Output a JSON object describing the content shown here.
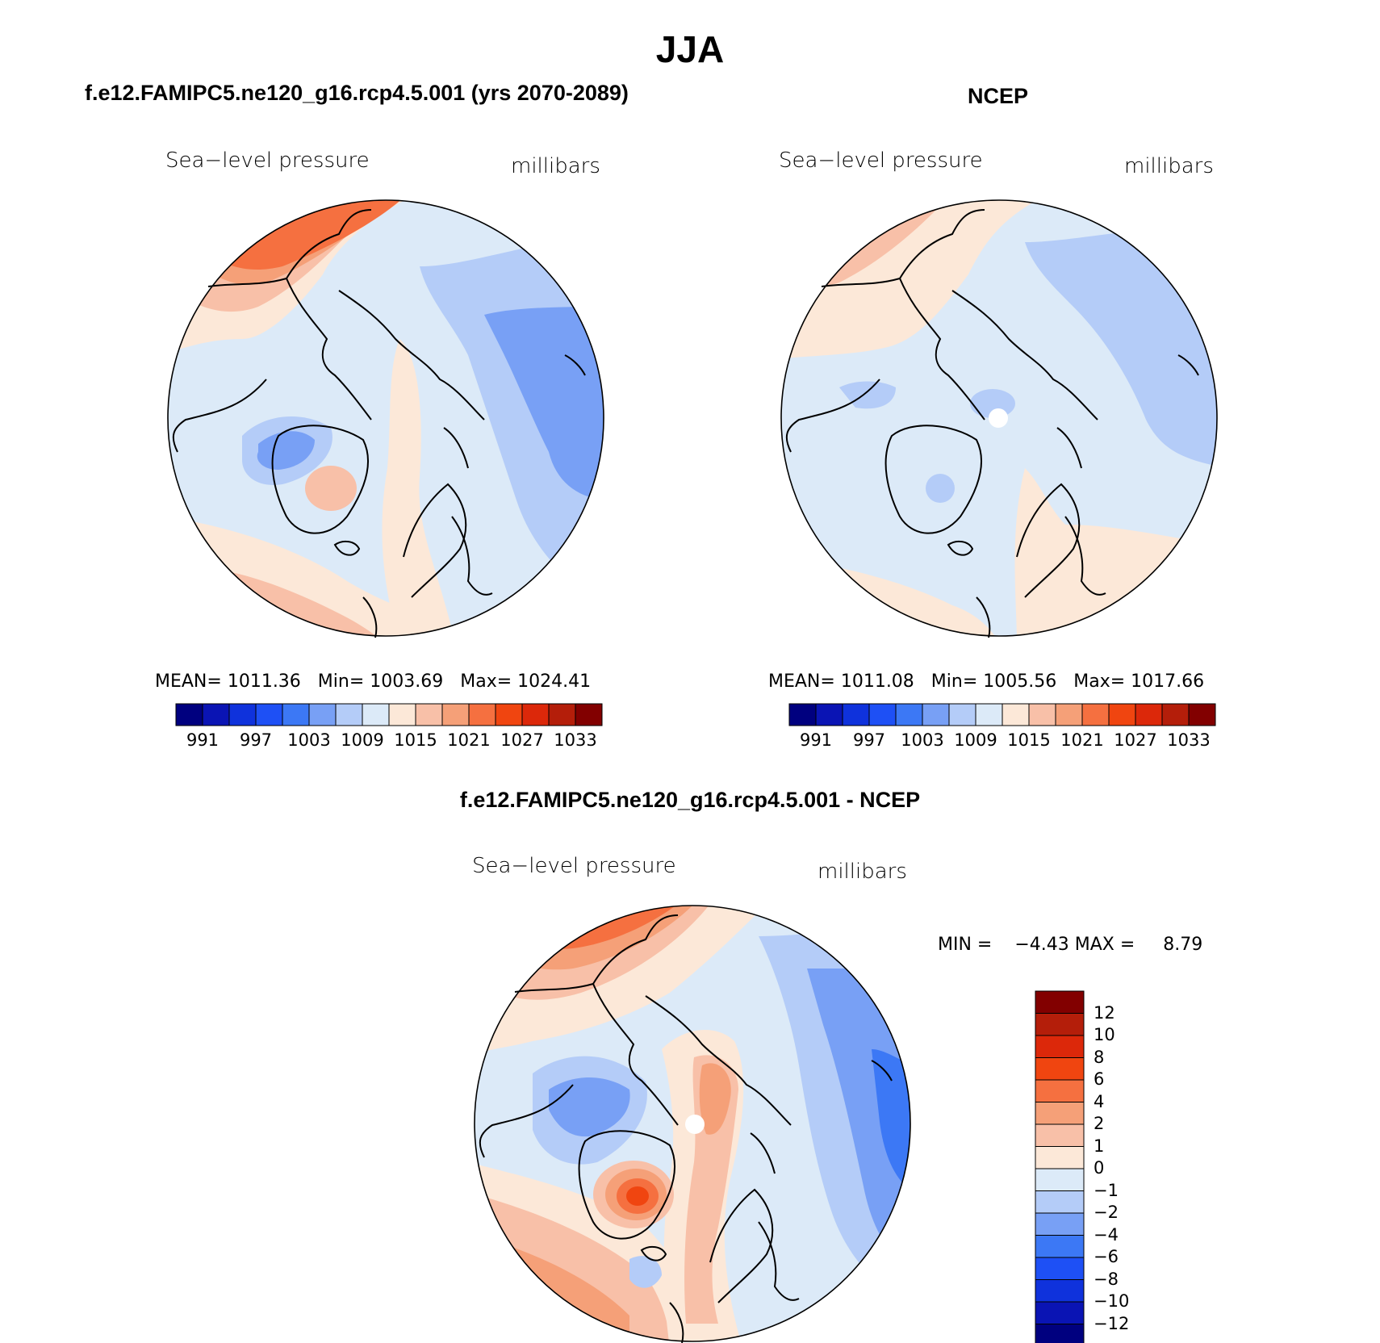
{
  "figure": {
    "title": "JJA"
  },
  "panels": [
    {
      "id": "model",
      "title": "f.e12.FAMIPC5.ne120_g16.rcp4.5.001 (yrs 2070-2089)",
      "variable": "Sea−level pressure",
      "units": "millibars",
      "stats": {
        "mean_label": "MEAN=",
        "mean": "1011.36",
        "min_label": "Min=",
        "min": "1003.69",
        "max_label": "Max=",
        "max": "1024.41"
      }
    },
    {
      "id": "obs",
      "title": "NCEP",
      "variable": "Sea−level pressure",
      "units": "millibars",
      "stats": {
        "mean_label": "MEAN=",
        "mean": "1011.08",
        "min_label": "Min=",
        "min": "1005.56",
        "max_label": "Max=",
        "max": "1017.66"
      }
    },
    {
      "id": "diff",
      "title": "f.e12.FAMIPC5.ne120_g16.rcp4.5.001 - NCEP",
      "variable": "Sea−level pressure",
      "units": "millibars",
      "stats": {
        "min_label": "MIN =",
        "min": "−4.43",
        "max_label": "MAX =",
        "max": "8.79"
      }
    }
  ],
  "colorbars": {
    "absolute": {
      "orientation": "horizontal",
      "colors": [
        "#00007f",
        "#0a14b4",
        "#0f32dc",
        "#1e50f5",
        "#3c78f5",
        "#78a0f5",
        "#b4ccf8",
        "#dceaf8",
        "#fce8d8",
        "#f8c0a8",
        "#f5a078",
        "#f57040",
        "#f04510",
        "#dc280a",
        "#b41e0a",
        "#820000"
      ],
      "labels": [
        "991",
        "997",
        "1003",
        "1009",
        "1015",
        "1021",
        "1027",
        "1033"
      ]
    },
    "difference": {
      "orientation": "vertical",
      "colors_top_to_bottom": [
        "#820000",
        "#b41e0a",
        "#dc280a",
        "#f04510",
        "#f57040",
        "#f5a078",
        "#f8c0a8",
        "#fce8d8",
        "#dceaf8",
        "#b4ccf8",
        "#78a0f5",
        "#3c78f5",
        "#1e50f5",
        "#0f32dc",
        "#0a14b4",
        "#00007f"
      ],
      "labels_top_to_bottom": [
        "12",
        "10",
        "8",
        "6",
        "4",
        "2",
        "1",
        "0",
        "−1",
        "−2",
        "−4",
        "−6",
        "−8",
        "−10",
        "−12"
      ]
    }
  },
  "map": {
    "projection": "north polar stereographic",
    "fill_colors": {
      "ocean_base": "#dceaf8",
      "light_blue": "#b4ccf8",
      "mid_blue": "#78a0f5",
      "blue": "#3c78f5",
      "peach": "#fce8d8",
      "salmon": "#f8c0a8",
      "orange": "#f5a078",
      "red_orange": "#f57040",
      "red": "#f04510"
    },
    "coastline_color": "#000000"
  }
}
